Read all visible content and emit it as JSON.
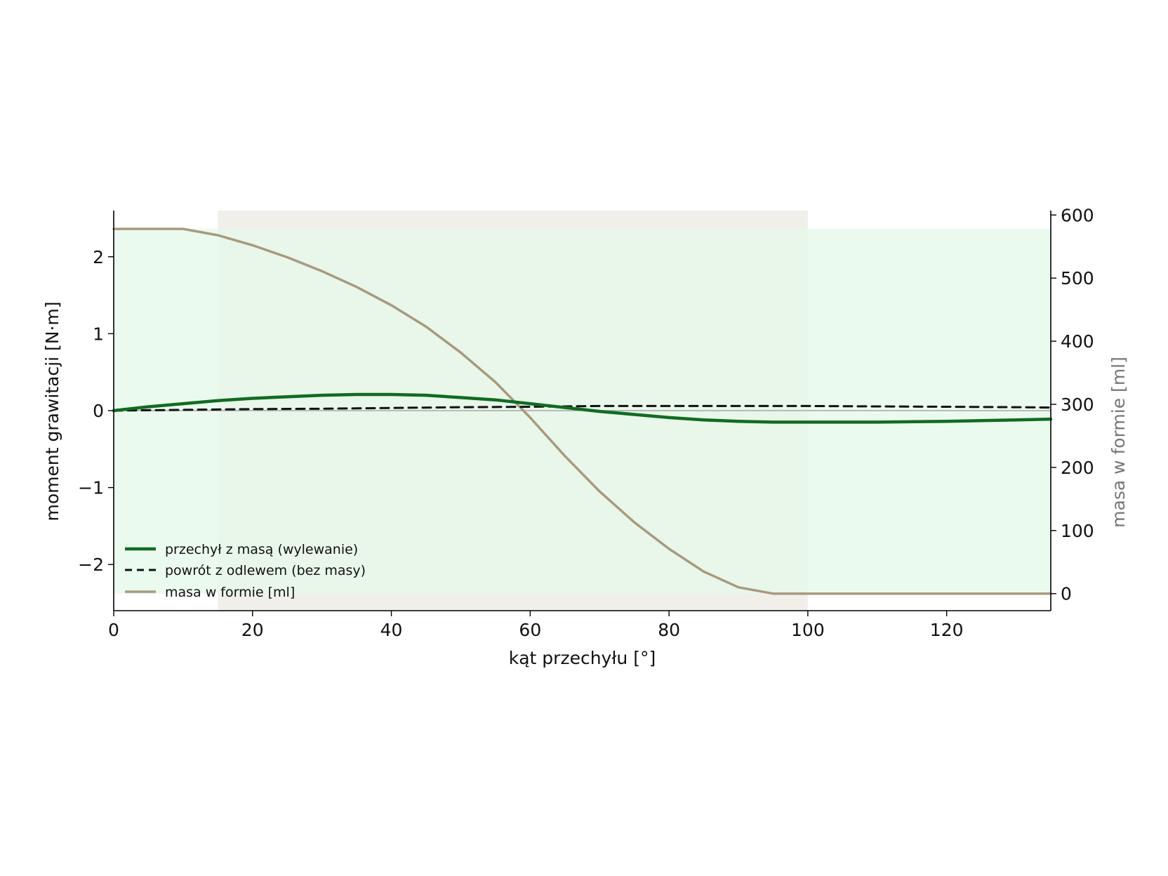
{
  "chart_data": {
    "type": "line",
    "xlabel": "kąt przechyłu [°]",
    "ylabel": "moment grawitacji [N·m]",
    "ylabel_right": "masa w formie [ml]",
    "xlim": [
      0,
      135
    ],
    "ylim": [
      -2.6,
      2.6
    ],
    "ylim_right": [
      -27,
      607
    ],
    "x_ticks": [
      0,
      20,
      40,
      60,
      80,
      100,
      120
    ],
    "y_ticks": [
      2,
      1,
      0,
      -1,
      -2
    ],
    "y_tick_labels": [
      "2",
      "1",
      "0",
      "−1",
      "−2"
    ],
    "y_right_ticks": [
      600,
      500,
      400,
      300,
      200,
      100,
      0
    ],
    "grid": false,
    "legend_position": "bottom-left",
    "colors": {
      "moment_with_mass": "#116b22",
      "return_no_mass": "#111111",
      "mass": "#a89a7e",
      "shade_gray": "#ebe8e1",
      "shade_green": "#e6f9ea",
      "zero_line": "#999999",
      "right_axis_label": "#777777"
    },
    "shaded_regions": [
      {
        "axis": "x",
        "from": 15,
        "to": 100,
        "color": "gray"
      },
      {
        "axis": "y_right",
        "from": 0,
        "to": 578,
        "color": "green"
      }
    ],
    "series": [
      {
        "name": "przechył z masą (wylewanie)",
        "axis": "left",
        "style": "solid",
        "x": [
          0,
          5,
          10,
          15,
          20,
          25,
          30,
          35,
          40,
          45,
          50,
          55,
          60,
          65,
          70,
          75,
          80,
          85,
          90,
          95,
          100,
          110,
          120,
          130,
          135
        ],
        "y": [
          0.0,
          0.05,
          0.09,
          0.13,
          0.16,
          0.18,
          0.2,
          0.21,
          0.21,
          0.2,
          0.17,
          0.14,
          0.09,
          0.04,
          -0.01,
          -0.05,
          -0.09,
          -0.12,
          -0.14,
          -0.15,
          -0.15,
          -0.15,
          -0.14,
          -0.12,
          -0.11
        ]
      },
      {
        "name": "powrót z odlewem (bez masy)",
        "axis": "left",
        "style": "dashed",
        "x": [
          0,
          10,
          20,
          30,
          40,
          50,
          60,
          70,
          80,
          90,
          100,
          110,
          120,
          130,
          135
        ],
        "y": [
          0.0,
          0.01,
          0.02,
          0.025,
          0.035,
          0.045,
          0.05,
          0.06,
          0.06,
          0.06,
          0.06,
          0.055,
          0.05,
          0.045,
          0.04
        ]
      },
      {
        "name": "masa w formie [ml]",
        "axis": "right",
        "style": "solid",
        "x": [
          0,
          5,
          10,
          15,
          20,
          25,
          30,
          35,
          40,
          45,
          50,
          55,
          60,
          65,
          70,
          75,
          80,
          85,
          90,
          95,
          100,
          110,
          120,
          130,
          135
        ],
        "y": [
          578,
          578,
          578,
          568,
          552,
          533,
          511,
          486,
          457,
          423,
          382,
          335,
          279,
          218,
          162,
          113,
          71,
          35,
          10,
          0,
          0,
          0,
          0,
          0,
          0
        ]
      }
    ]
  }
}
